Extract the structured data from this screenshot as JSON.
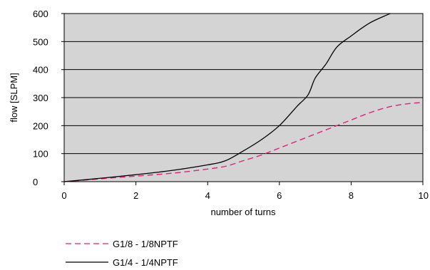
{
  "chart_data": {
    "type": "line",
    "title": "",
    "xlabel": "number of turns",
    "ylabel": "flow [SLPM]",
    "xlim": [
      0,
      10
    ],
    "ylim": [
      0,
      600
    ],
    "xticks": [
      "0",
      "2",
      "4",
      "6",
      "8",
      "10"
    ],
    "yticks": [
      "0",
      "100",
      "200",
      "300",
      "400",
      "500",
      "600"
    ],
    "grid": "horizontal",
    "plot_background": "#d4d4d4",
    "legend_position": "bottom-left",
    "series": [
      {
        "name": "G1/8 - 1/8NPTF",
        "color": "#e0207a",
        "style": "dashed",
        "x": [
          0,
          1,
          2,
          3,
          4,
          4.5,
          5,
          5.5,
          6,
          6.5,
          7,
          7.5,
          8,
          8.5,
          9,
          9.5,
          10
        ],
        "y": [
          0,
          10,
          20,
          30,
          45,
          55,
          75,
          95,
          120,
          145,
          170,
          195,
          220,
          245,
          265,
          277,
          283
        ]
      },
      {
        "name": "G1/4 - 1/4NPTF",
        "color": "#000000",
        "style": "solid",
        "x": [
          0,
          1,
          2,
          3,
          4,
          4.5,
          5,
          5.5,
          6,
          6.5,
          6.8,
          7,
          7.3,
          7.6,
          8,
          8.5,
          9,
          9.1
        ],
        "y": [
          0,
          12,
          25,
          40,
          60,
          75,
          110,
          150,
          200,
          270,
          310,
          370,
          420,
          480,
          520,
          565,
          595,
          600
        ]
      }
    ]
  }
}
